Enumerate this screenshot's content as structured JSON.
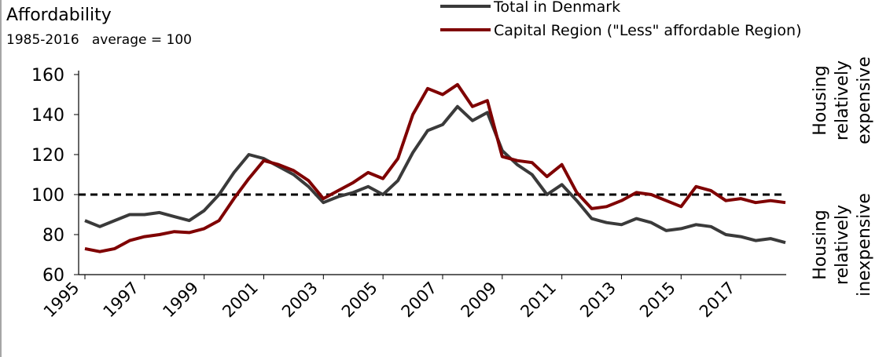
{
  "chart_data": {
    "type": "line",
    "title": "Affordability",
    "subtitle": "1985-2016   average = 100",
    "x": [
      1995,
      1995.5,
      1996,
      1996.5,
      1997,
      1997.5,
      1998,
      1998.5,
      1999,
      1999.5,
      2000,
      2000.5,
      2001,
      2001.5,
      2002,
      2002.5,
      2003,
      2003.5,
      2004,
      2004.5,
      2005,
      2005.5,
      2006,
      2006.5,
      2007,
      2007.5,
      2008,
      2008.5,
      2009,
      2009.5,
      2010,
      2010.5,
      2011,
      2011.5,
      2012,
      2012.5,
      2013,
      2013.5,
      2014,
      2014.5,
      2015,
      2015.5,
      2016,
      2016.5,
      2017,
      2017.5,
      2018,
      2018.5
    ],
    "series": [
      {
        "name": "Total in Denmark",
        "color": "#3a3a3a",
        "values": [
          87,
          84,
          87,
          90,
          90,
          91,
          89,
          87,
          92,
          100,
          111,
          120,
          118,
          114,
          110,
          104,
          96,
          99,
          101,
          104,
          100,
          107,
          121,
          132,
          135,
          144,
          137,
          141,
          122,
          115,
          110,
          100,
          105,
          97,
          88,
          86,
          85,
          88,
          86,
          82,
          83,
          85,
          84,
          80,
          79,
          77,
          78,
          76
        ]
      },
      {
        "name": "Capital Region (\"Less\" affordable Region)",
        "color": "#7f0000",
        "values": [
          73,
          71.5,
          73,
          77,
          79,
          80,
          81.5,
          81,
          83,
          87,
          98,
          108,
          117,
          115,
          112,
          107,
          98,
          102,
          106,
          111,
          108,
          118,
          140,
          153,
          150,
          155,
          144,
          147,
          119,
          117,
          116,
          109,
          115,
          101,
          93,
          94,
          97,
          101,
          100,
          97,
          94,
          104,
          102,
          97,
          98,
          96,
          97,
          96
        ]
      }
    ],
    "reference_line": 100,
    "xlim": [
      1995,
      2018.5
    ],
    "xticks": [
      1995,
      1997,
      1999,
      2001,
      2003,
      2005,
      2007,
      2009,
      2011,
      2013,
      2015,
      2017
    ],
    "ylim": [
      60,
      160
    ],
    "yticks": [
      60,
      80,
      100,
      120,
      140,
      160
    ],
    "annotations": [
      [
        "Housing",
        "relatively",
        "expensive"
      ],
      [
        "Housing",
        "relatively",
        "inexpensive"
      ]
    ]
  }
}
